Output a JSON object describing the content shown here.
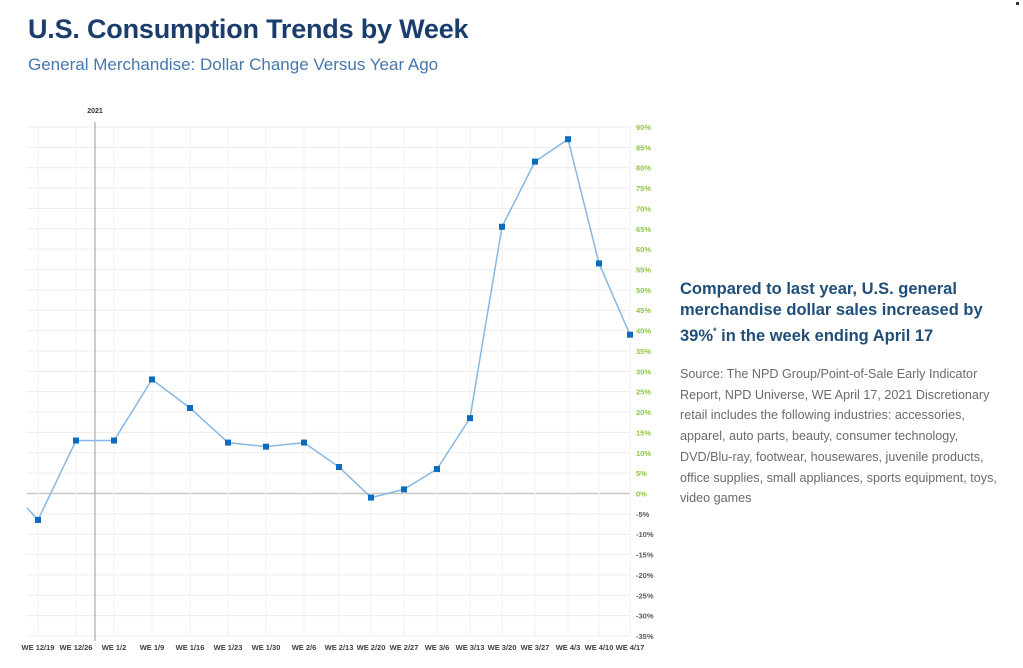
{
  "header": {
    "title": "U.S. Consumption Trends by Week",
    "subtitle": "General Merchandise: Dollar Change Versus Year Ago"
  },
  "callout": {
    "headline_pre": "Compared to last year, U.S. general merchandise dollar sales increased by 39%",
    "headline_sup": "*",
    "headline_post": " in the week ending April 17"
  },
  "source_note": {
    "text": "Source: The NPD Group/Point-of-Sale Early Indicator Report, NPD Universe, WE April 17, 2021 Discretionary retail includes the following industries: accessories, apparel, auto parts, beauty, consumer technology, DVD/Blu-ray, footwear, housewares, juvenile products, office supplies, small appliances, sports equipment, toys, video games"
  },
  "colors": {
    "line": "#86b8e3",
    "marker": "#0b6bbd",
    "positive_tick": "#8cc63f",
    "negative_tick": "#595959",
    "grid": "#ececec",
    "zero_line": "#c8c8c8",
    "year_divider": "#b0b0b0"
  },
  "chart_data": {
    "type": "line",
    "title": "U.S. Consumption Trends by Week",
    "subtitle": "General Merchandise: Dollar Change Versus Year Ago",
    "xlabel": "",
    "ylabel": "",
    "year_marker": {
      "label": "2021",
      "between": [
        "WE 12/26",
        "WE 1/2"
      ]
    },
    "categories": [
      "WE 12/19",
      "WE 12/26",
      "WE 1/2",
      "WE 1/9",
      "WE 1/16",
      "WE 1/23",
      "WE 1/30",
      "WE 2/6",
      "WE 2/13",
      "WE 2/20",
      "WE 2/27",
      "WE 3/6",
      "WE 3/13",
      "WE 3/20",
      "WE 3/27",
      "WE 4/3",
      "WE 4/10",
      "WE 4/17"
    ],
    "series": [
      {
        "name": "General Merchandise Dollar Change vs Year Ago (%)",
        "values": [
          -6.5,
          13,
          13,
          28,
          21,
          12.5,
          11.5,
          12.5,
          6.5,
          -1,
          1,
          6,
          18.5,
          65.5,
          81.5,
          87,
          56.5,
          39
        ]
      }
    ],
    "lead_in_value": -3.5,
    "ylim": [
      -35,
      90
    ],
    "ytick_step": 5,
    "ytick_format": "percent",
    "yaxis_side": "right",
    "grid": true,
    "legend": "none"
  }
}
